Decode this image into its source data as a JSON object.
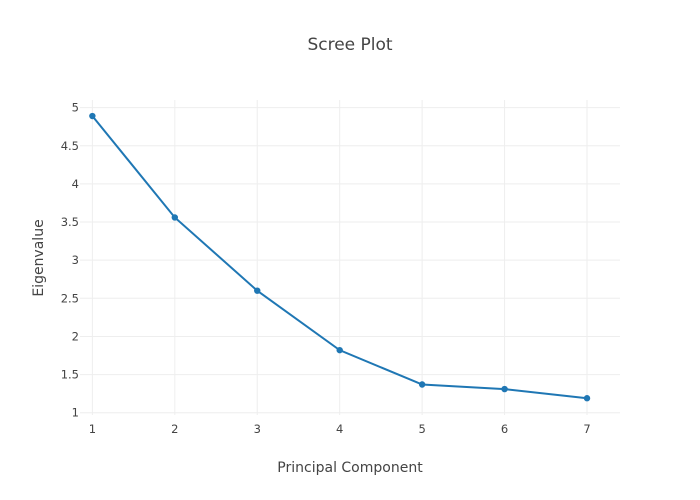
{
  "chart_data": {
    "type": "line",
    "title": "Scree Plot",
    "xlabel": "Principal Component",
    "ylabel": "Eigenvalue",
    "x": [
      1,
      2,
      3,
      4,
      5,
      6,
      7
    ],
    "series": [
      {
        "values": [
          4.89,
          3.56,
          2.6,
          1.82,
          1.37,
          1.31,
          1.19
        ],
        "color": "#1f77b4"
      }
    ],
    "xlim": [
      0.85,
      7.4
    ],
    "ylim": [
      0.97,
      5.1
    ],
    "x_ticks": [
      1,
      2,
      3,
      4,
      5,
      6,
      7
    ],
    "y_ticks": [
      1,
      1.5,
      2,
      2.5,
      3,
      3.5,
      4,
      4.5,
      5
    ],
    "x_tick_labels": [
      "1",
      "2",
      "3",
      "4",
      "5",
      "6",
      "7"
    ],
    "y_tick_labels": [
      "1",
      "1.5",
      "2",
      "2.5",
      "3",
      "3.5",
      "4",
      "4.5",
      "5"
    ],
    "grid": true,
    "legend": "none"
  }
}
